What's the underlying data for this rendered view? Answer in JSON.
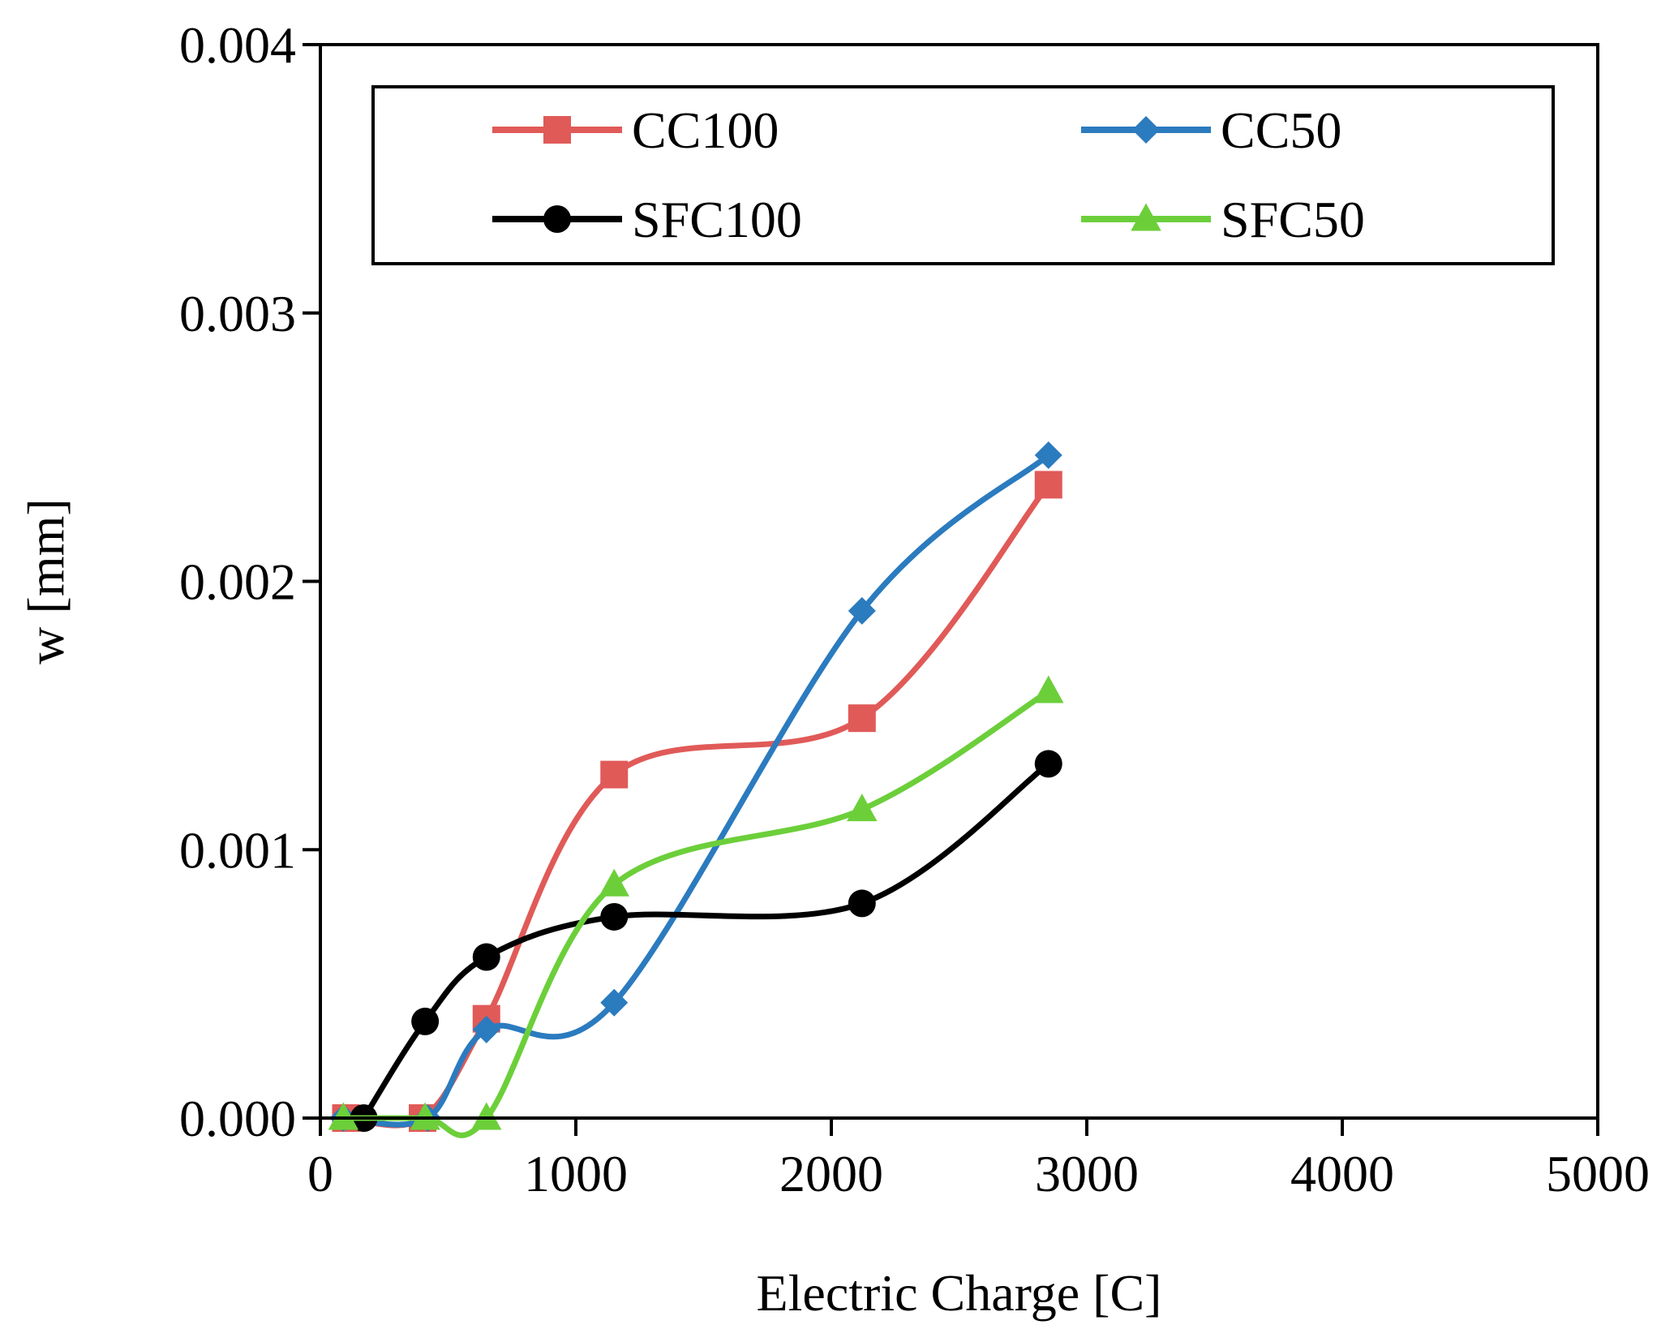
{
  "chart_data": {
    "type": "line",
    "title": "",
    "xlabel": "Electric Charge [C]",
    "ylabel": "w [mm]",
    "xlim": [
      0,
      5000
    ],
    "ylim": [
      0,
      0.004
    ],
    "xticks": [
      0,
      1000,
      2000,
      3000,
      4000,
      5000
    ],
    "xtick_labels": [
      "0",
      "1000",
      "2000",
      "3000",
      "4000",
      "5000"
    ],
    "yticks": [
      0,
      0.001,
      0.002,
      0.003,
      0.004
    ],
    "ytick_labels": [
      "0.000",
      "0.001",
      "0.002",
      "0.003",
      "0.004"
    ],
    "grid": false,
    "legend_position": "top",
    "series": [
      {
        "name": "CC100",
        "color": "#e05a58",
        "marker": "square",
        "x": [
          100,
          400,
          650,
          1150,
          2120,
          2850
        ],
        "y": [
          0,
          0,
          0.00037,
          0.00128,
          0.00149,
          0.00236
        ]
      },
      {
        "name": "CC50",
        "color": "#2b7bbf",
        "marker": "diamond",
        "x": [
          90,
          420,
          650,
          1150,
          2120,
          2850
        ],
        "y": [
          0,
          0,
          0.00033,
          0.00043,
          0.00189,
          0.00247
        ]
      },
      {
        "name": "SFC100",
        "color": "#000000",
        "marker": "circle",
        "x": [
          170,
          410,
          650,
          1150,
          2120,
          2850
        ],
        "y": [
          0,
          0.00036,
          0.0006,
          0.00075,
          0.0008,
          0.00132
        ]
      },
      {
        "name": "SFC50",
        "color": "#6ccf3a",
        "marker": "triangle",
        "x": [
          90,
          410,
          650,
          1150,
          2120,
          2850
        ],
        "y": [
          0,
          0,
          0,
          0.00087,
          0.00115,
          0.00159
        ]
      }
    ]
  }
}
